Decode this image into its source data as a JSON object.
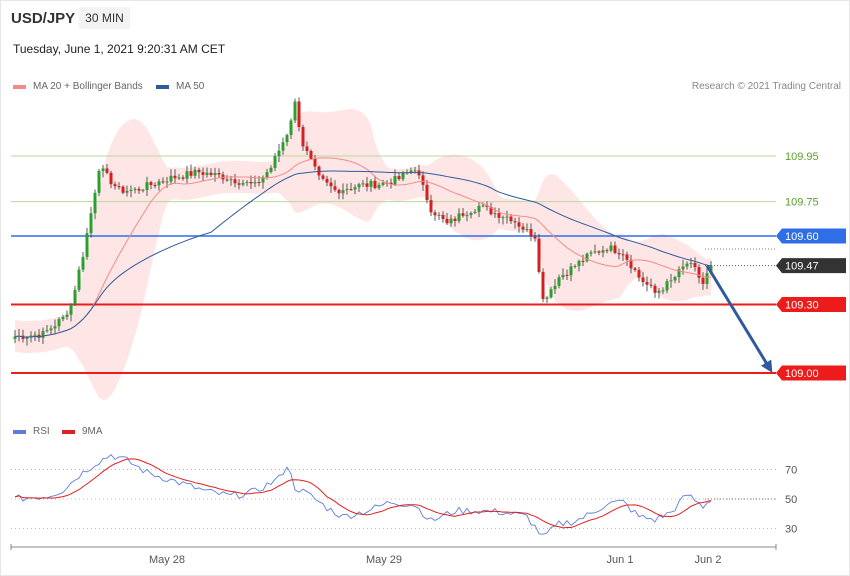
{
  "header": {
    "pair": "USD/JPY",
    "timeframe": "30 MIN",
    "datetime": "Tuesday, June 1, 2021 9:20:31 AM CET",
    "credit": "Research © 2021 Trading Central"
  },
  "legend": {
    "price": [
      {
        "label": "MA 20 + Bollinger Bands",
        "color": "#f58a86"
      },
      {
        "label": "MA 50",
        "color": "#2e5a9c"
      }
    ],
    "rsi": [
      {
        "label": "RSI",
        "color": "#5b7fd8"
      },
      {
        "label": "9MA",
        "color": "#e11f1f"
      }
    ]
  },
  "colors": {
    "up": "#2e9e2e",
    "down": "#d61f1f",
    "band": "#ffe0e0",
    "resistance_green": "#b9d99a",
    "pivot_blue": "#2f6fe6",
    "support_red": "#ee1b1b",
    "arrow": "#30599e",
    "current_price_tag": "#333333"
  },
  "chart_data": [
    {
      "type": "candlestick",
      "title": "",
      "y_axis_side": "right",
      "ylim": [
        108.94,
        110.25
      ],
      "x_labels": [
        "May 28",
        "May 29",
        "Jun 1",
        "Jun 2"
      ],
      "levels": [
        {
          "value": 109.95,
          "label": "109.95",
          "style": "resistance"
        },
        {
          "value": 109.75,
          "label": "109.75",
          "style": "resistance"
        },
        {
          "value": 109.6,
          "label": "109.60",
          "style": "pivot"
        },
        {
          "value": 109.47,
          "label": "109.47",
          "style": "current"
        },
        {
          "value": 109.3,
          "label": "109.30",
          "style": "support"
        },
        {
          "value": 109.0,
          "label": "109.00",
          "style": "support"
        }
      ],
      "anchors": [
        [
          0,
          109.16
        ],
        [
          7,
          109.17
        ],
        [
          12,
          109.24
        ],
        [
          14,
          109.3
        ],
        [
          17,
          109.52
        ],
        [
          19,
          109.7
        ],
        [
          21,
          109.9
        ],
        [
          26,
          109.8
        ],
        [
          30,
          109.8
        ],
        [
          38,
          109.85
        ],
        [
          46,
          109.88
        ],
        [
          52,
          109.86
        ],
        [
          60,
          109.82
        ],
        [
          64,
          109.9
        ],
        [
          68,
          110.05
        ],
        [
          70,
          110.18
        ],
        [
          72,
          110.0
        ],
        [
          76,
          109.85
        ],
        [
          80,
          109.8
        ],
        [
          86,
          109.82
        ],
        [
          92,
          109.83
        ],
        [
          96,
          109.85
        ],
        [
          100,
          109.9
        ],
        [
          104,
          109.72
        ],
        [
          108,
          109.65
        ],
        [
          112,
          109.7
        ],
        [
          116,
          109.73
        ],
        [
          120,
          109.7
        ],
        [
          124,
          109.68
        ],
        [
          128,
          109.62
        ],
        [
          130,
          109.6
        ],
        [
          132,
          109.32
        ],
        [
          136,
          109.42
        ],
        [
          140,
          109.47
        ],
        [
          144,
          109.52
        ],
        [
          148,
          109.55
        ],
        [
          152,
          109.53
        ],
        [
          156,
          109.42
        ],
        [
          160,
          109.35
        ],
        [
          164,
          109.4
        ],
        [
          168,
          109.48
        ],
        [
          170,
          109.45
        ],
        [
          172,
          109.39
        ],
        [
          174,
          109.47
        ]
      ],
      "forecast_arrow": {
        "from": 109.47,
        "to": 109.0
      }
    },
    {
      "type": "line",
      "title": "",
      "y_axis_side": "right",
      "ylim": [
        20,
        80
      ],
      "y_ticks": [
        30,
        50,
        70
      ],
      "series_names": [
        "RSI",
        "9MA"
      ],
      "rsi_anchors": [
        [
          0,
          50
        ],
        [
          8,
          52
        ],
        [
          12,
          56
        ],
        [
          16,
          66
        ],
        [
          20,
          74
        ],
        [
          24,
          80
        ],
        [
          28,
          76
        ],
        [
          33,
          68
        ],
        [
          40,
          62
        ],
        [
          48,
          55
        ],
        [
          54,
          52
        ],
        [
          60,
          55
        ],
        [
          66,
          64
        ],
        [
          68,
          73
        ],
        [
          70,
          58
        ],
        [
          74,
          52
        ],
        [
          78,
          44
        ],
        [
          82,
          38
        ],
        [
          88,
          42
        ],
        [
          94,
          48
        ],
        [
          100,
          46
        ],
        [
          104,
          35
        ],
        [
          110,
          42
        ],
        [
          116,
          42
        ],
        [
          122,
          41
        ],
        [
          128,
          38
        ],
        [
          132,
          24
        ],
        [
          136,
          33
        ],
        [
          140,
          35
        ],
        [
          144,
          40
        ],
        [
          148,
          47
        ],
        [
          152,
          48
        ],
        [
          156,
          38
        ],
        [
          160,
          36
        ],
        [
          164,
          41
        ],
        [
          168,
          53
        ],
        [
          172,
          45
        ],
        [
          174,
          50
        ]
      ]
    }
  ]
}
